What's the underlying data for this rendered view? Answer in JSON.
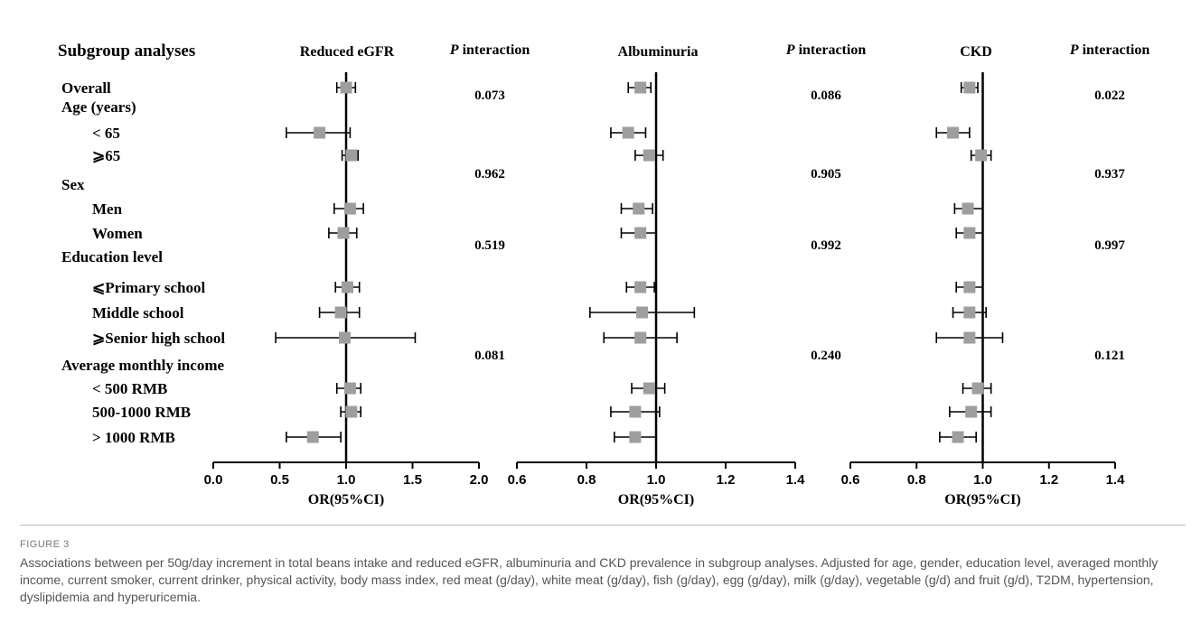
{
  "chart_data": {
    "type": "forest",
    "header": "Subgroup analyses",
    "p_header_prefix": "P",
    "p_header_suffix": " interaction",
    "rows": [
      {
        "label": "Overall",
        "level": 0
      },
      {
        "label": "Age (years)",
        "level": 0
      },
      {
        "label": "< 65",
        "level": 1
      },
      {
        "label": "⩾65",
        "level": 1
      },
      {
        "label": "Sex",
        "level": 0
      },
      {
        "label": "Men",
        "level": 1
      },
      {
        "label": "Women",
        "level": 1
      },
      {
        "label": "Education level",
        "level": 0
      },
      {
        "label": "⩽Primary school",
        "level": 1
      },
      {
        "label": "Middle school",
        "level": 1
      },
      {
        "label": "⩾Senior high school",
        "level": 1
      },
      {
        "label": "Average monthly income",
        "level": 0
      },
      {
        "label": "< 500 RMB",
        "level": 1
      },
      {
        "label": "500-1000 RMB",
        "level": 1
      },
      {
        "label": "> 1000 RMB",
        "level": 1
      }
    ],
    "panels": [
      {
        "title": "Reduced eGFR",
        "xlim": [
          0.0,
          2.0
        ],
        "ticks": [
          "0.0",
          "0.5",
          "1.0",
          "1.5",
          "2.0"
        ],
        "xlabel": "OR(95%CI)",
        "p_interactions": [
          "0.073",
          "0.962",
          "0.519",
          "0.081"
        ],
        "estimates": [
          {
            "or": 1.0,
            "lo": 0.93,
            "hi": 1.07
          },
          null,
          {
            "or": 0.8,
            "lo": 0.55,
            "hi": 1.03
          },
          {
            "or": 1.04,
            "lo": 0.97,
            "hi": 1.09
          },
          null,
          {
            "or": 1.03,
            "lo": 0.91,
            "hi": 1.13
          },
          {
            "or": 0.98,
            "lo": 0.87,
            "hi": 1.08
          },
          null,
          {
            "or": 1.01,
            "lo": 0.92,
            "hi": 1.1
          },
          {
            "or": 0.96,
            "lo": 0.8,
            "hi": 1.1
          },
          {
            "or": 0.99,
            "lo": 0.47,
            "hi": 1.52
          },
          null,
          {
            "or": 1.03,
            "lo": 0.93,
            "hi": 1.11
          },
          {
            "or": 1.04,
            "lo": 0.96,
            "hi": 1.11
          },
          {
            "or": 0.75,
            "lo": 0.55,
            "hi": 0.96
          }
        ]
      },
      {
        "title": "Albuminuria",
        "xlim": [
          0.6,
          1.4
        ],
        "ticks": [
          "0.6",
          "0.8",
          "1.0",
          "1.2",
          "1.4"
        ],
        "xlabel": "OR(95%CI)",
        "p_interactions": [
          "0.086",
          "0.905",
          "0.992",
          "0.240"
        ],
        "estimates": [
          {
            "or": 0.955,
            "lo": 0.92,
            "hi": 0.985
          },
          null,
          {
            "or": 0.92,
            "lo": 0.87,
            "hi": 0.97
          },
          {
            "or": 0.98,
            "lo": 0.94,
            "hi": 1.02
          },
          null,
          {
            "or": 0.95,
            "lo": 0.9,
            "hi": 0.99
          },
          {
            "or": 0.955,
            "lo": 0.9,
            "hi": 1.0
          },
          null,
          {
            "or": 0.955,
            "lo": 0.915,
            "hi": 0.995
          },
          {
            "or": 0.96,
            "lo": 0.81,
            "hi": 1.11
          },
          {
            "or": 0.955,
            "lo": 0.85,
            "hi": 1.06
          },
          null,
          {
            "or": 0.98,
            "lo": 0.93,
            "hi": 1.025
          },
          {
            "or": 0.94,
            "lo": 0.87,
            "hi": 1.01
          },
          {
            "or": 0.94,
            "lo": 0.88,
            "hi": 1.0
          }
        ]
      },
      {
        "title": "CKD",
        "xlim": [
          0.6,
          1.4
        ],
        "ticks": [
          "0.6",
          "0.8",
          "1.0",
          "1.2",
          "1.4"
        ],
        "xlabel": "OR(95%CI)",
        "p_interactions": [
          "0.022",
          "0.937",
          "0.997",
          "0.121"
        ],
        "estimates": [
          {
            "or": 0.96,
            "lo": 0.935,
            "hi": 0.985
          },
          null,
          {
            "or": 0.91,
            "lo": 0.86,
            "hi": 0.96
          },
          {
            "or": 0.995,
            "lo": 0.965,
            "hi": 1.025
          },
          null,
          {
            "or": 0.955,
            "lo": 0.915,
            "hi": 1.0
          },
          {
            "or": 0.96,
            "lo": 0.92,
            "hi": 1.0
          },
          null,
          {
            "or": 0.96,
            "lo": 0.92,
            "hi": 1.0
          },
          {
            "or": 0.96,
            "lo": 0.91,
            "hi": 1.01
          },
          {
            "or": 0.96,
            "lo": 0.86,
            "hi": 1.06
          },
          null,
          {
            "or": 0.985,
            "lo": 0.94,
            "hi": 1.025
          },
          {
            "or": 0.965,
            "lo": 0.9,
            "hi": 1.025
          },
          {
            "or": 0.925,
            "lo": 0.87,
            "hi": 0.98
          }
        ]
      }
    ]
  },
  "figure": {
    "label": "FIGURE 3",
    "caption": "Associations between per 50g/day increment in total beans intake and reduced eGFR, albuminuria and CKD prevalence in subgroup analyses. Adjusted for age, gender, education level, averaged monthly income, current smoker, current drinker, physical activity, body mass index, red meat (g/day), white meat (g/day), fish (g/day), egg (g/day), milk (g/day), vegetable (g/d) and fruit (g/d), T2DM, hypertension, dyslipidemia and hyperuricemia."
  },
  "colors": {
    "marker": "#9e9e9e",
    "line": "#000000"
  }
}
